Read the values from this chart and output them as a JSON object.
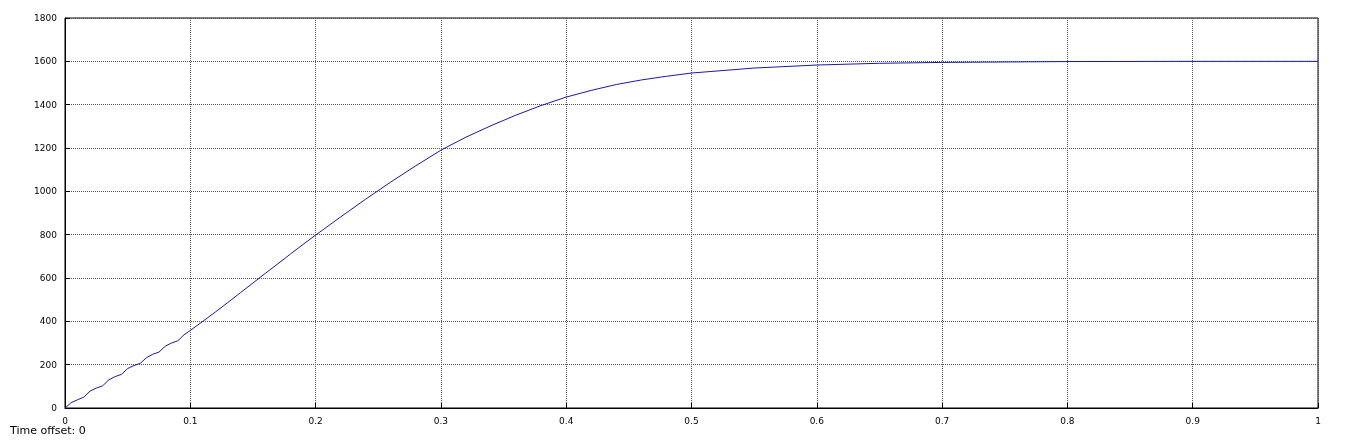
{
  "chart_data": {
    "type": "line",
    "annotations": [
      "Time offset: 0"
    ],
    "x": [
      0,
      0.005,
      0.01,
      0.015,
      0.02,
      0.025,
      0.03,
      0.035,
      0.04,
      0.045,
      0.05,
      0.055,
      0.06,
      0.065,
      0.07,
      0.075,
      0.08,
      0.085,
      0.09,
      0.095,
      0.1,
      0.11,
      0.12,
      0.13,
      0.14,
      0.15,
      0.16,
      0.17,
      0.18,
      0.19,
      0.2,
      0.22,
      0.24,
      0.26,
      0.28,
      0.3,
      0.32,
      0.34,
      0.36,
      0.38,
      0.4,
      0.42,
      0.44,
      0.46,
      0.48,
      0.5,
      0.55,
      0.6,
      0.65,
      0.7,
      0.8,
      0.9,
      1
    ],
    "series": [
      {
        "color": "#1a1aa0",
        "values": [
          0,
          25,
          38,
          50,
          78,
          92,
          102,
          130,
          145,
          155,
          182,
          196,
          206,
          232,
          248,
          258,
          285,
          300,
          310,
          338,
          358,
          400,
          443,
          487,
          532,
          577,
          622,
          666,
          711,
          755,
          798,
          882,
          964,
          1043,
          1118,
          1190,
          1250,
          1303,
          1352,
          1396,
          1435,
          1466,
          1493,
          1514,
          1531,
          1546,
          1569,
          1583,
          1591,
          1595,
          1599,
          1600,
          1600
        ]
      }
    ],
    "xlim": [
      0,
      1
    ],
    "xticks": [
      0,
      0.1,
      0.2,
      0.3,
      0.4,
      0.5,
      0.6,
      0.7,
      0.8,
      0.9,
      1
    ],
    "ylim": [
      0,
      1800
    ],
    "yticks": [
      0,
      200,
      400,
      600,
      800,
      1000,
      1200,
      1400,
      1600,
      1800
    ],
    "grid": true,
    "marker": "none",
    "line_style": "solid"
  }
}
